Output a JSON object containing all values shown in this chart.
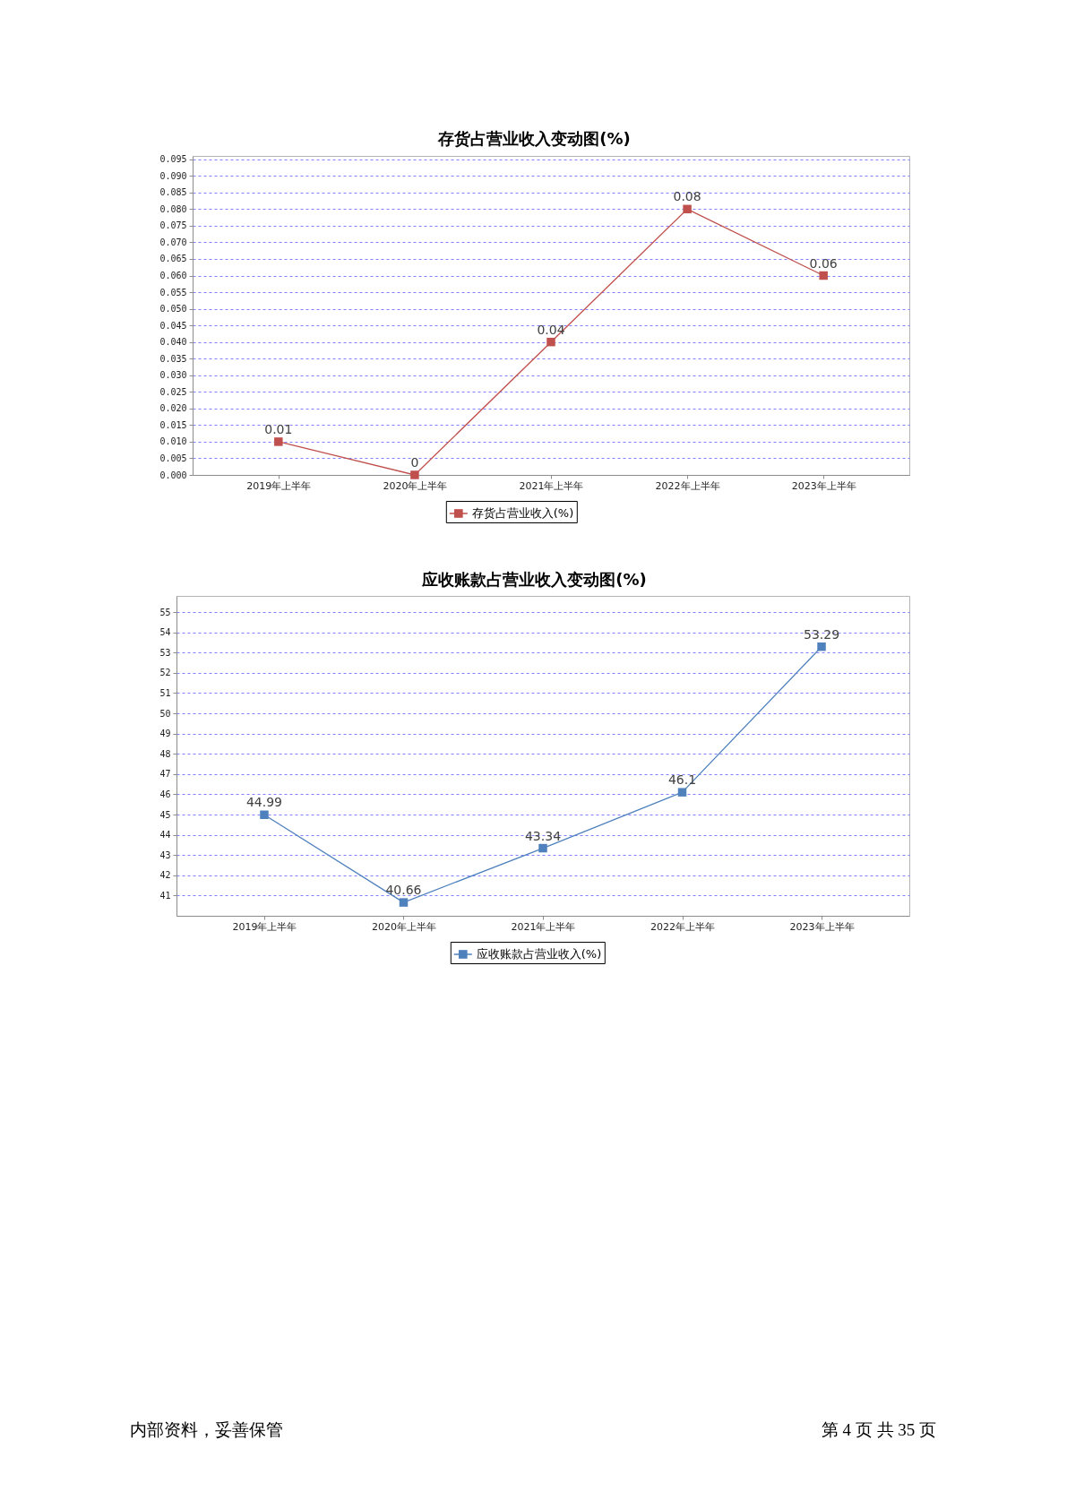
{
  "chart_data": [
    {
      "type": "line",
      "title": "存货占营业收入变动图(%)",
      "categories": [
        "2019年上半年",
        "2020年上半年",
        "2021年上半年",
        "2022年上半年",
        "2023年上半年"
      ],
      "series": [
        {
          "name": "存货占营业收入(%)",
          "color": "#c0504d",
          "values": [
            0.01,
            0,
            0.04,
            0.08,
            0.06
          ]
        }
      ],
      "ylim": [
        0,
        0.096
      ],
      "yticks": [
        {
          "value": 0,
          "label": "0.000"
        },
        0.005,
        {
          "value": 0.01,
          "label": "0.010"
        },
        0.015,
        {
          "value": 0.02,
          "label": "0.020"
        },
        0.025,
        {
          "value": 0.03,
          "label": "0.030"
        },
        0.035,
        {
          "value": 0.04,
          "label": "0.040"
        },
        0.045,
        {
          "value": 0.05,
          "label": "0.050"
        },
        0.055,
        {
          "value": 0.06,
          "label": "0.060"
        },
        0.065,
        {
          "value": 0.07,
          "label": "0.070"
        },
        0.075,
        {
          "value": 0.08,
          "label": "0.080"
        },
        0.085,
        {
          "value": 0.09,
          "label": "0.090"
        },
        0.095
      ],
      "grid": "y",
      "legend": "bottom",
      "marker": "square",
      "line_style": "solid",
      "data_labels": true
    },
    {
      "type": "line",
      "title": "应收账款占营业收入变动图(%)",
      "categories": [
        "2019年上半年",
        "2020年上半年",
        "2021年上半年",
        "2022年上半年",
        "2023年上半年"
      ],
      "series": [
        {
          "name": "应收账款占营业收入(%)",
          "color": "#4f81bd",
          "values": [
            44.99,
            40.66,
            43.34,
            46.1,
            53.29
          ]
        }
      ],
      "ylim": [
        40,
        55.8
      ],
      "yticks": [
        41,
        42,
        43,
        44,
        45,
        46,
        47,
        48,
        49,
        50,
        51,
        52,
        53,
        54,
        55
      ],
      "grid": "y",
      "legend": "bottom",
      "marker": "square",
      "line_style": "solid",
      "data_labels": true,
      "annotations": [
        "内部资料，妥善保管",
        "第 4 页  共 35 页"
      ]
    }
  ]
}
